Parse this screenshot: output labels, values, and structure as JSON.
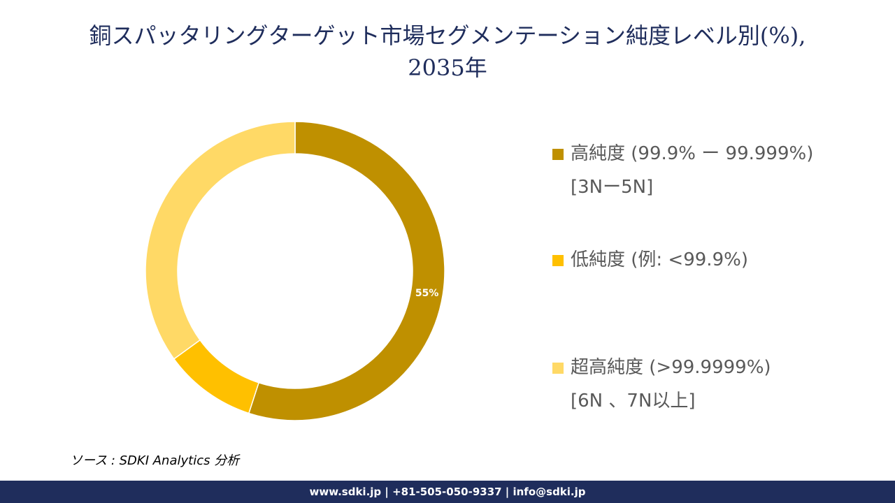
{
  "chart_data": {
    "type": "donut",
    "title": "銅スパッタリングターゲット市場セグメンテーション純度レベル別(%),\n2035年",
    "categories": [
      "高純度 (99.9% ー 99.999%)\n[3Nー5N]",
      "低純度 (例: <99.9%)",
      "超高純度 (>99.9999%)\n[6N 、7N以上]"
    ],
    "values": [
      55,
      10,
      35
    ],
    "value_labels": [
      "55%",
      null,
      null
    ],
    "colors": [
      "#bf9000",
      "#ffc000",
      "#ffd966"
    ],
    "source": "ソース : SDKI Analytics 分析",
    "footer": "www.sdki.jp | +81-505-050-9337 | info@sdki.jp"
  }
}
